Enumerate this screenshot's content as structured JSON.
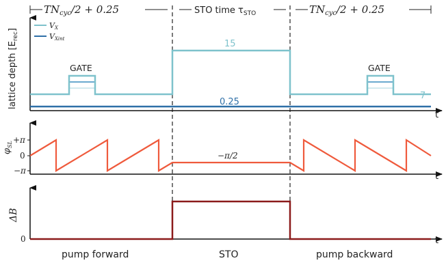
{
  "header": {
    "left_label": "TN",
    "left_sub": "cyc",
    "left_tail": "/2 + 0.25",
    "middle_label": "STO time τ",
    "middle_sub": "STO",
    "right_label": "TN",
    "right_sub": "cyc",
    "right_tail": "/2 + 0.25"
  },
  "panel_lattice": {
    "ylabel": "lattice depth [E",
    "ylabel_sub": "rec",
    "ylabel_tail": "]",
    "legend": [
      {
        "name": "V",
        "sub": "X",
        "color": "#7ec2cc"
      },
      {
        "name": "V",
        "sub": "Xint",
        "color": "#2e6fa7"
      }
    ],
    "gate_left": "GATE",
    "gate_right": "GATE",
    "sto_value": "15",
    "base_value": "7",
    "xint_value": "0.25",
    "t_axis": "t"
  },
  "panel_phase": {
    "ylabel": "φ",
    "ylabel_sub": "SL",
    "ticks": [
      "+π",
      "0",
      "−π"
    ],
    "sto_value": "−π/2",
    "t_axis": "t",
    "color": "#ef5a3c"
  },
  "panel_field": {
    "ylabel": "ΔB",
    "zero_tick": "0",
    "t_axis": "t",
    "color": "#8b1a1a"
  },
  "footer": {
    "left": "pump forward",
    "middle": "STO",
    "right": "pump backward"
  }
}
